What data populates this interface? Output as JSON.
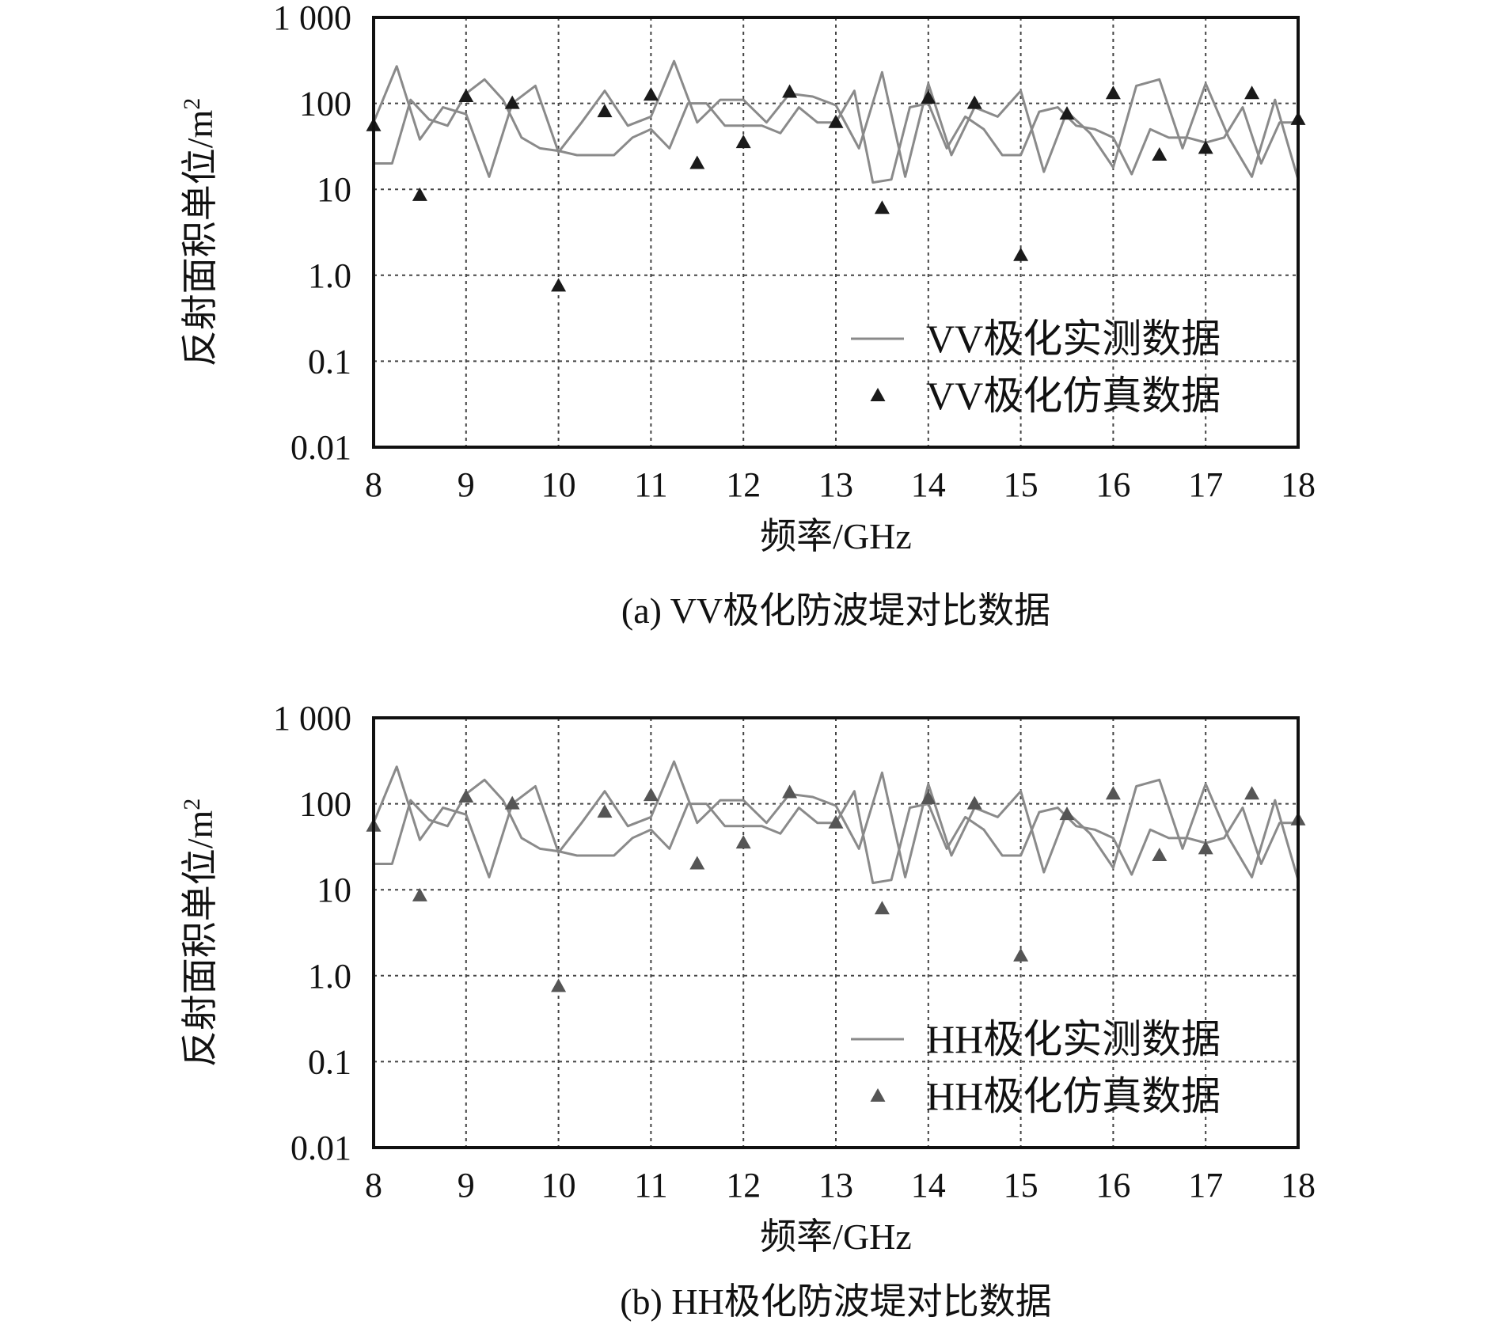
{
  "chart_data": [
    {
      "type": "line",
      "caption": "(a) VV极化防波堤对比数据",
      "xlabel": "频率/GHz",
      "ylabel": "反射面积单位/m²",
      "xlim": [
        8,
        18
      ],
      "ylim": [
        0.01,
        1000
      ],
      "yscale": "log",
      "grid": true,
      "legend_position": "bottom-right",
      "xticks": [
        8,
        9,
        10,
        11,
        12,
        13,
        14,
        15,
        16,
        17,
        18
      ],
      "ytick_labels": [
        "0.01",
        "0.1",
        "1.0",
        "10",
        "100",
        "1 000"
      ],
      "ytick_values": [
        0.01,
        0.1,
        1,
        10,
        100,
        1000
      ],
      "colors": {
        "measured": "#8a8a8a",
        "simulated": "#1a1a1a"
      },
      "series": [
        {
          "name": "VV极化实测数据",
          "style": "line",
          "x": [
            8,
            8.2,
            8.4,
            8.6,
            8.8,
            9,
            9.2,
            9.4,
            9.6,
            9.8,
            10,
            10.2,
            10.4,
            10.6,
            10.8,
            11,
            11.2,
            11.4,
            11.6,
            11.8,
            12,
            12.2,
            12.4,
            12.6,
            12.8,
            13,
            13.2,
            13.4,
            13.6,
            13.8,
            14,
            14.2,
            14.4,
            14.6,
            14.8,
            15,
            15.2,
            15.4,
            15.6,
            15.8,
            16,
            16.2,
            16.4,
            16.6,
            16.8,
            17,
            17.2,
            17.4,
            17.6,
            17.8,
            18
          ],
          "y": [
            20,
            20,
            110,
            65,
            55,
            130,
            190,
            110,
            40,
            30,
            28,
            25,
            25,
            25,
            40,
            50,
            30,
            100,
            100,
            55,
            55,
            55,
            45,
            90,
            60,
            60,
            140,
            12,
            13,
            90,
            100,
            30,
            70,
            50,
            25,
            25,
            80,
            90,
            55,
            50,
            40,
            15,
            50,
            40,
            40,
            35,
            40,
            90,
            20,
            60,
            60
          ]
        },
        {
          "name": "VV极化实测数据 (trace 2)",
          "style": "line",
          "x": [
            8,
            8.25,
            8.5,
            8.75,
            9,
            9.25,
            9.5,
            9.75,
            10,
            10.25,
            10.5,
            10.75,
            11,
            11.25,
            11.5,
            11.75,
            12,
            12.25,
            12.5,
            12.75,
            13,
            13.25,
            13.5,
            13.75,
            14,
            14.25,
            14.5,
            14.75,
            15,
            15.25,
            15.5,
            15.75,
            16,
            16.25,
            16.5,
            16.75,
            17,
            17.25,
            17.5,
            17.75,
            18
          ],
          "y": [
            60,
            270,
            38,
            90,
            75,
            14,
            100,
            160,
            27,
            60,
            140,
            55,
            70,
            310,
            60,
            110,
            110,
            60,
            130,
            120,
            95,
            30,
            230,
            14,
            170,
            25,
            90,
            70,
            140,
            16,
            80,
            45,
            18,
            160,
            190,
            30,
            170,
            40,
            14,
            110,
            13
          ]
        },
        {
          "name": "VV极化仿真数据",
          "style": "marker",
          "x": [
            8,
            8.5,
            9,
            9.5,
            10,
            10.5,
            11,
            11.5,
            12,
            12.5,
            13,
            13.5,
            14,
            14.5,
            15,
            15.5,
            16,
            16.5,
            17,
            17.5,
            18
          ],
          "y": [
            55,
            8.5,
            120,
            100,
            0.75,
            80,
            125,
            20,
            35,
            135,
            60,
            6,
            115,
            100,
            1.7,
            75,
            130,
            25,
            30,
            130,
            65
          ]
        }
      ]
    },
    {
      "type": "line",
      "caption": "(b) HH极化防波堤对比数据",
      "xlabel": "频率/GHz",
      "ylabel": "反射面积单位/m²",
      "xlim": [
        8,
        18
      ],
      "ylim": [
        0.01,
        1000
      ],
      "yscale": "log",
      "grid": true,
      "legend_position": "bottom-right",
      "xticks": [
        8,
        9,
        10,
        11,
        12,
        13,
        14,
        15,
        16,
        17,
        18
      ],
      "ytick_labels": [
        "0.01",
        "0.1",
        "1.0",
        "10",
        "100",
        "1 000"
      ],
      "ytick_values": [
        0.01,
        0.1,
        1,
        10,
        100,
        1000
      ],
      "colors": {
        "measured": "#8a8a8a",
        "simulated": "#555555"
      },
      "series": [
        {
          "name": "HH极化实测数据",
          "style": "line",
          "x": [
            8,
            8.2,
            8.4,
            8.6,
            8.8,
            9,
            9.2,
            9.4,
            9.6,
            9.8,
            10,
            10.2,
            10.4,
            10.6,
            10.8,
            11,
            11.2,
            11.4,
            11.6,
            11.8,
            12,
            12.2,
            12.4,
            12.6,
            12.8,
            13,
            13.2,
            13.4,
            13.6,
            13.8,
            14,
            14.2,
            14.4,
            14.6,
            14.8,
            15,
            15.2,
            15.4,
            15.6,
            15.8,
            16,
            16.2,
            16.4,
            16.6,
            16.8,
            17,
            17.2,
            17.4,
            17.6,
            17.8,
            18
          ],
          "y": [
            20,
            20,
            110,
            65,
            55,
            130,
            190,
            110,
            40,
            30,
            28,
            25,
            25,
            25,
            40,
            50,
            30,
            100,
            100,
            55,
            55,
            55,
            45,
            90,
            60,
            60,
            140,
            12,
            13,
            90,
            100,
            30,
            70,
            50,
            25,
            25,
            80,
            90,
            55,
            50,
            40,
            15,
            50,
            40,
            40,
            35,
            40,
            90,
            20,
            60,
            60
          ]
        },
        {
          "name": "HH极化实测数据 (trace 2)",
          "style": "line",
          "x": [
            8,
            8.25,
            8.5,
            8.75,
            9,
            9.25,
            9.5,
            9.75,
            10,
            10.25,
            10.5,
            10.75,
            11,
            11.25,
            11.5,
            11.75,
            12,
            12.25,
            12.5,
            12.75,
            13,
            13.25,
            13.5,
            13.75,
            14,
            14.25,
            14.5,
            14.75,
            15,
            15.25,
            15.5,
            15.75,
            16,
            16.25,
            16.5,
            16.75,
            17,
            17.25,
            17.5,
            17.75,
            18
          ],
          "y": [
            60,
            270,
            38,
            90,
            75,
            14,
            100,
            160,
            27,
            60,
            140,
            55,
            70,
            310,
            60,
            110,
            110,
            60,
            130,
            120,
            95,
            30,
            230,
            14,
            170,
            25,
            90,
            70,
            140,
            16,
            80,
            45,
            18,
            160,
            190,
            30,
            170,
            40,
            14,
            110,
            13
          ]
        },
        {
          "name": "HH极化仿真数据",
          "style": "marker",
          "x": [
            8,
            8.5,
            9,
            9.5,
            10,
            10.5,
            11,
            11.5,
            12,
            12.5,
            13,
            13.5,
            14,
            14.5,
            15,
            15.5,
            16,
            16.5,
            17,
            17.5,
            18
          ],
          "y": [
            55,
            8.5,
            120,
            100,
            0.75,
            80,
            125,
            20,
            35,
            135,
            60,
            6,
            115,
            100,
            1.7,
            75,
            130,
            25,
            30,
            130,
            65
          ]
        }
      ]
    }
  ],
  "legends": [
    {
      "measured": "VV极化实测数据",
      "simulated": "VV极化仿真数据"
    },
    {
      "measured": "HH极化实测数据",
      "simulated": "HH极化仿真数据"
    }
  ]
}
